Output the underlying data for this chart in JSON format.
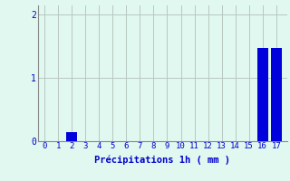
{
  "categories": [
    0,
    1,
    2,
    3,
    4,
    5,
    6,
    7,
    8,
    9,
    10,
    11,
    12,
    13,
    14,
    15,
    16,
    17
  ],
  "values": [
    0,
    0,
    0.14,
    0,
    0,
    0,
    0,
    0,
    0,
    0,
    0,
    0,
    0,
    0,
    0,
    0,
    1.48,
    1.48
  ],
  "bar_color": "#0000dd",
  "background_color": "#e0f8f0",
  "grid_color": "#b8c8c0",
  "xlabel": "Précipitations 1h ( mm )",
  "xlabel_color": "#0000cc",
  "ylabel_ticks": [
    0,
    1,
    2
  ],
  "ylim": [
    0,
    2.15
  ],
  "xlim": [
    -0.5,
    17.8
  ],
  "bar_width": 0.8,
  "tick_fontsize": 6.5,
  "xlabel_fontsize": 7.5
}
